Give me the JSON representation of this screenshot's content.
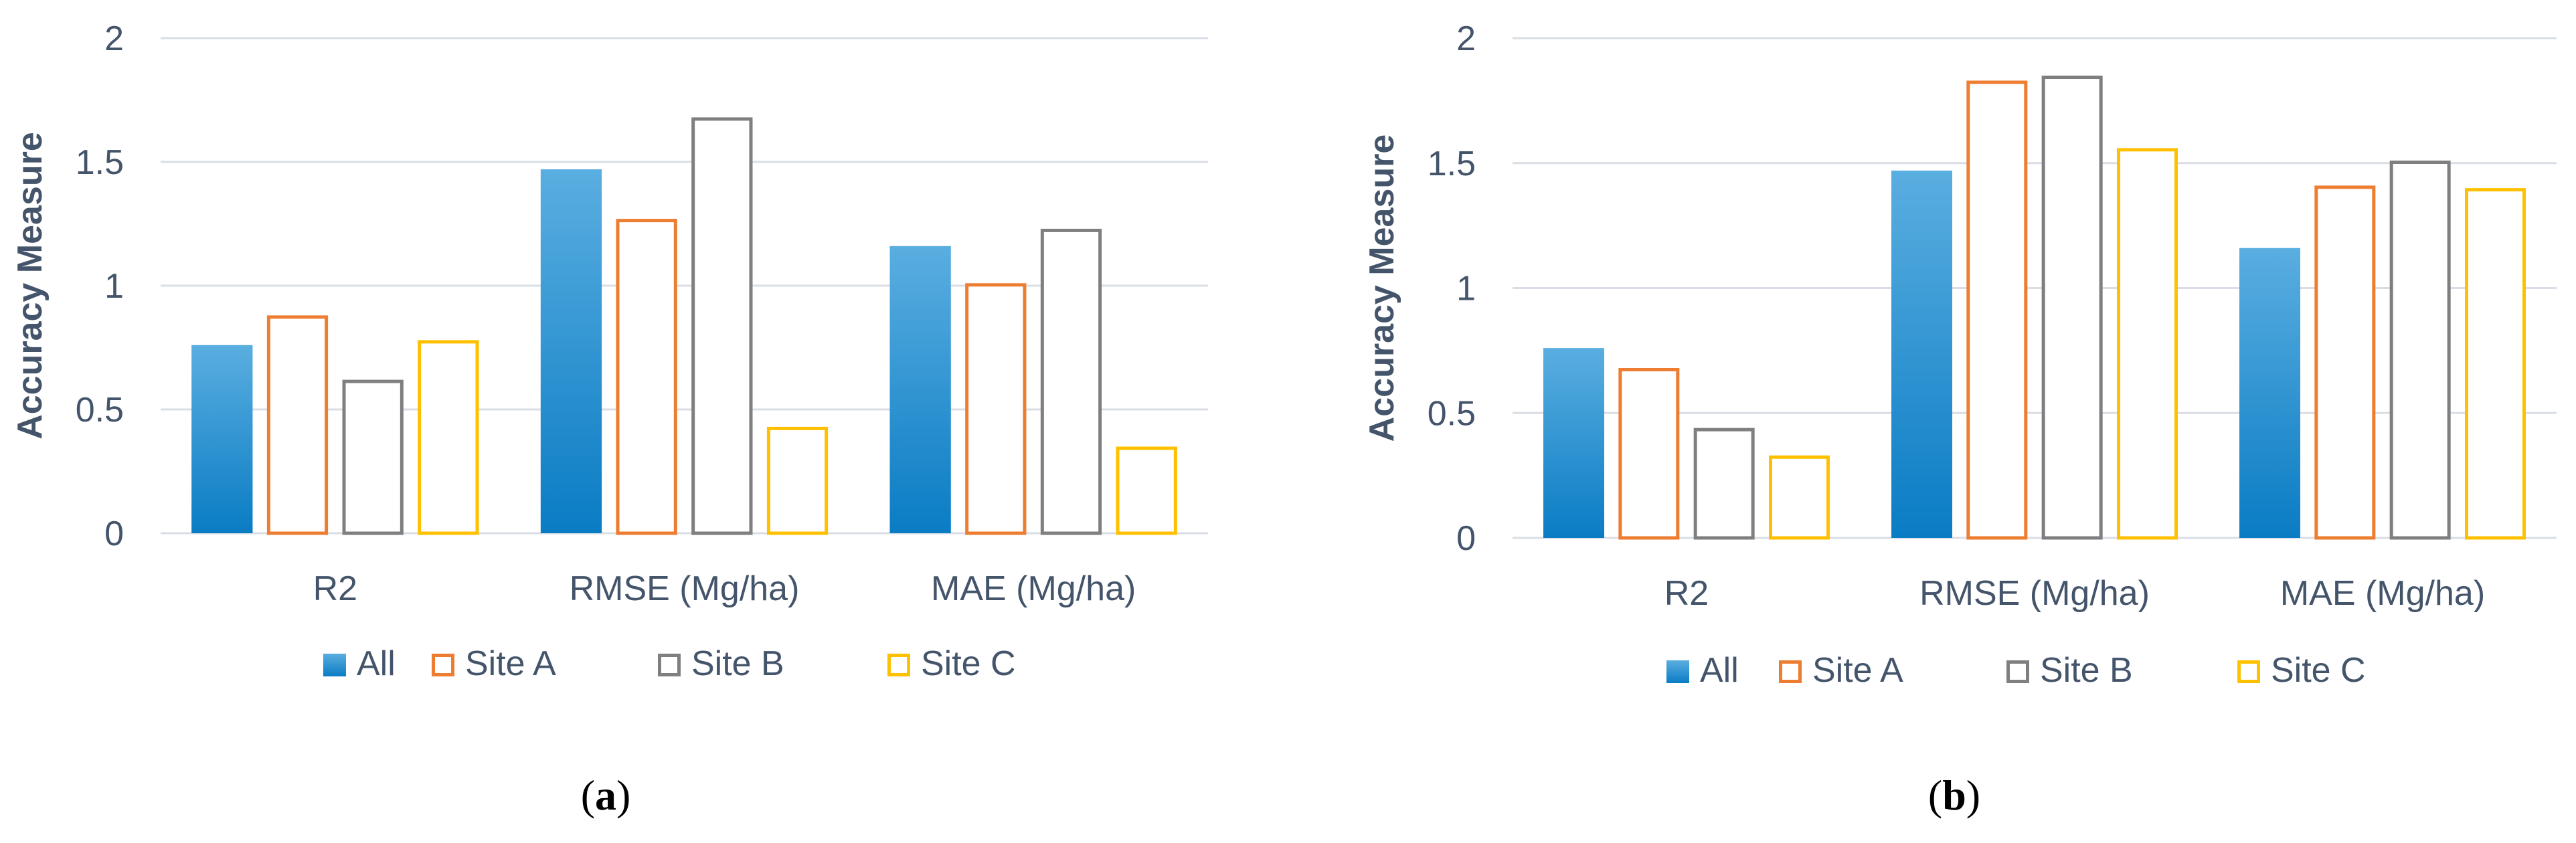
{
  "chart_data": [
    {
      "type": "bar",
      "panel_label": "a",
      "ylabel": "Accuracy Measure",
      "xlabel": "",
      "ylim": [
        0,
        2
      ],
      "yticks": [
        "0",
        "0.5",
        "1",
        "1.5",
        "2"
      ],
      "categories": [
        "R2",
        "RMSE (Mg/ha)",
        "MAE (Mg/ha)"
      ],
      "series": [
        {
          "name": "All",
          "values": [
            0.76,
            1.47,
            1.16
          ]
        },
        {
          "name": "Site A",
          "values": [
            0.88,
            1.27,
            1.01
          ]
        },
        {
          "name": "Site B",
          "values": [
            0.62,
            1.68,
            1.23
          ]
        },
        {
          "name": "Site C",
          "values": [
            0.78,
            0.43,
            0.35
          ]
        }
      ],
      "grid": true,
      "legend": "bottom"
    },
    {
      "type": "bar",
      "panel_label": "b",
      "ylabel": "Accuracy Measure",
      "xlabel": "",
      "ylim": [
        0,
        2
      ],
      "yticks": [
        "0",
        "0.5",
        "1",
        "1.5",
        "2"
      ],
      "categories": [
        "R2",
        "RMSE (Mg/ha)",
        "MAE (Mg/ha)"
      ],
      "series": [
        {
          "name": "All",
          "values": [
            0.76,
            1.47,
            1.16
          ]
        },
        {
          "name": "Site A",
          "values": [
            0.68,
            1.83,
            1.41
          ]
        },
        {
          "name": "Site B",
          "values": [
            0.44,
            1.85,
            1.51
          ]
        },
        {
          "name": "Site C",
          "values": [
            0.33,
            1.56,
            1.4
          ]
        }
      ],
      "grid": true,
      "legend": "bottom"
    }
  ],
  "colors": {
    "all_top": "#5aaee0",
    "all_bottom": "#0a7cc4",
    "site_a": "#ed7d31",
    "site_b": "#7f7f7f",
    "site_c": "#ffc000",
    "grid": "#d9dee6",
    "axis_text": "#44546a"
  }
}
